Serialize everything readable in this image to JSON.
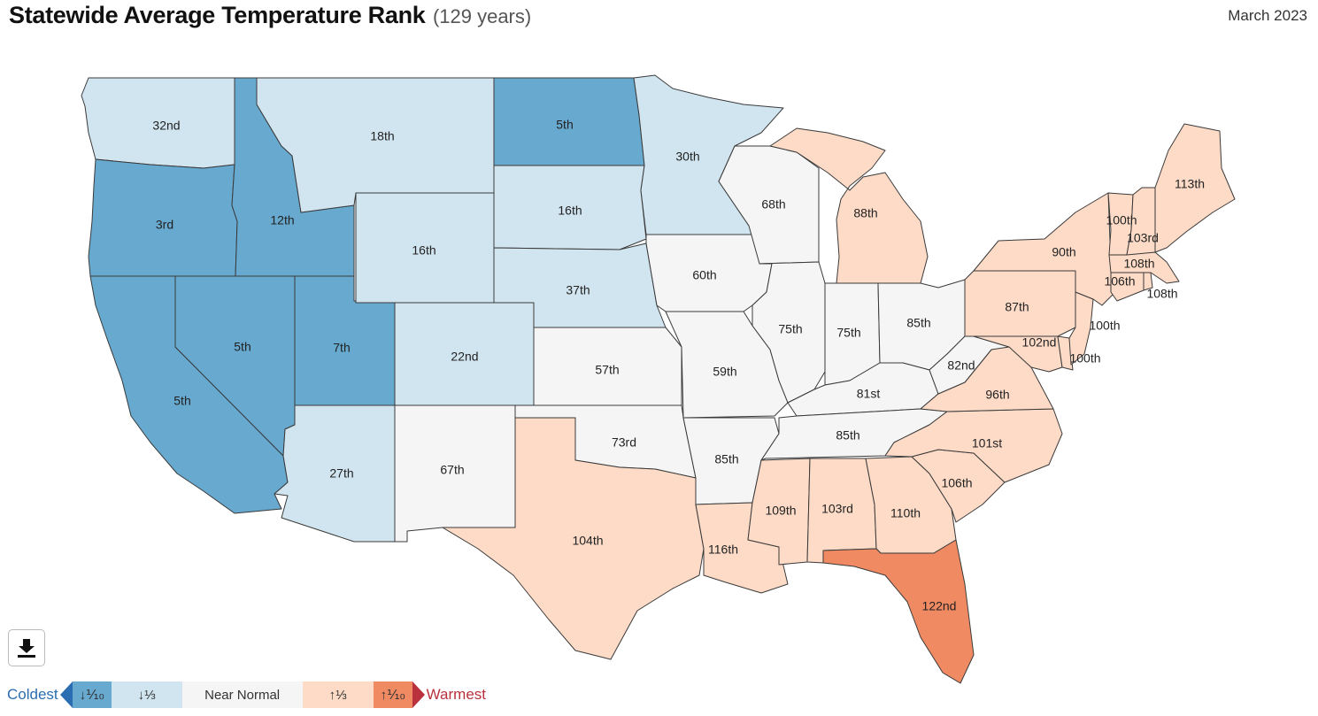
{
  "header": {
    "title": "Statewide Average Temperature Rank",
    "subtitle": "(129 years)",
    "date": "March 2023"
  },
  "colors": {
    "much_below": "#67a9cf",
    "below": "#d1e5f0",
    "near": "#f5f5f5",
    "above": "#fddbc7",
    "much_above": "#ef8a62",
    "border": "#3a3a3a"
  },
  "states": [
    {
      "id": "WA",
      "rank": "32nd",
      "cat": "below"
    },
    {
      "id": "OR",
      "rank": "3rd",
      "cat": "much_below"
    },
    {
      "id": "CA",
      "rank": "5th",
      "cat": "much_below"
    },
    {
      "id": "ID",
      "rank": "12th",
      "cat": "much_below"
    },
    {
      "id": "NV",
      "rank": "5th",
      "cat": "much_below"
    },
    {
      "id": "UT",
      "rank": "7th",
      "cat": "much_below"
    },
    {
      "id": "MT",
      "rank": "18th",
      "cat": "below"
    },
    {
      "id": "WY",
      "rank": "16th",
      "cat": "below"
    },
    {
      "id": "CO",
      "rank": "22nd",
      "cat": "below"
    },
    {
      "id": "AZ",
      "rank": "27th",
      "cat": "below"
    },
    {
      "id": "NM",
      "rank": "67th",
      "cat": "near"
    },
    {
      "id": "ND",
      "rank": "5th",
      "cat": "much_below"
    },
    {
      "id": "SD",
      "rank": "16th",
      "cat": "below"
    },
    {
      "id": "NE",
      "rank": "37th",
      "cat": "below"
    },
    {
      "id": "KS",
      "rank": "57th",
      "cat": "near"
    },
    {
      "id": "OK",
      "rank": "73rd",
      "cat": "near"
    },
    {
      "id": "TX",
      "rank": "104th",
      "cat": "above"
    },
    {
      "id": "MN",
      "rank": "30th",
      "cat": "below"
    },
    {
      "id": "IA",
      "rank": "60th",
      "cat": "near"
    },
    {
      "id": "MO",
      "rank": "59th",
      "cat": "near"
    },
    {
      "id": "AR",
      "rank": "85th",
      "cat": "near"
    },
    {
      "id": "LA",
      "rank": "116th",
      "cat": "above"
    },
    {
      "id": "WI",
      "rank": "68th",
      "cat": "near"
    },
    {
      "id": "IL",
      "rank": "75th",
      "cat": "near"
    },
    {
      "id": "MI",
      "rank": "88th",
      "cat": "above"
    },
    {
      "id": "IN",
      "rank": "75th",
      "cat": "near"
    },
    {
      "id": "OH",
      "rank": "85th",
      "cat": "near"
    },
    {
      "id": "KY",
      "rank": "81st",
      "cat": "near"
    },
    {
      "id": "TN",
      "rank": "85th",
      "cat": "near"
    },
    {
      "id": "MS",
      "rank": "109th",
      "cat": "above"
    },
    {
      "id": "AL",
      "rank": "103rd",
      "cat": "above"
    },
    {
      "id": "GA",
      "rank": "110th",
      "cat": "above"
    },
    {
      "id": "FL",
      "rank": "122nd",
      "cat": "much_above"
    },
    {
      "id": "SC",
      "rank": "106th",
      "cat": "above"
    },
    {
      "id": "NC",
      "rank": "101st",
      "cat": "above"
    },
    {
      "id": "VA",
      "rank": "96th",
      "cat": "above"
    },
    {
      "id": "WV",
      "rank": "82nd",
      "cat": "near"
    },
    {
      "id": "MD",
      "rank": "102nd",
      "cat": "above"
    },
    {
      "id": "DE",
      "rank": "100th",
      "cat": "above"
    },
    {
      "id": "PA",
      "rank": "87th",
      "cat": "above"
    },
    {
      "id": "NJ",
      "rank": "100th",
      "cat": "above"
    },
    {
      "id": "NY",
      "rank": "90th",
      "cat": "above"
    },
    {
      "id": "CT",
      "rank": "106th",
      "cat": "above"
    },
    {
      "id": "RI",
      "rank": "108th",
      "cat": "above"
    },
    {
      "id": "MA",
      "rank": "108th",
      "cat": "above"
    },
    {
      "id": "VT",
      "rank": "100th",
      "cat": "above"
    },
    {
      "id": "NH",
      "rank": "103rd",
      "cat": "above"
    },
    {
      "id": "ME",
      "rank": "113th",
      "cat": "above"
    }
  ],
  "legend": {
    "coldest": "Coldest",
    "warmest": "Warmest",
    "items": [
      {
        "label": "↓⅒",
        "cat": "much_below"
      },
      {
        "label": "↓⅓",
        "cat": "below"
      },
      {
        "label": "Near Normal",
        "cat": "near"
      },
      {
        "label": "↑⅓",
        "cat": "above"
      },
      {
        "label": "↑⅒",
        "cat": "much_above"
      }
    ]
  },
  "download": {
    "icon": "download-icon"
  }
}
